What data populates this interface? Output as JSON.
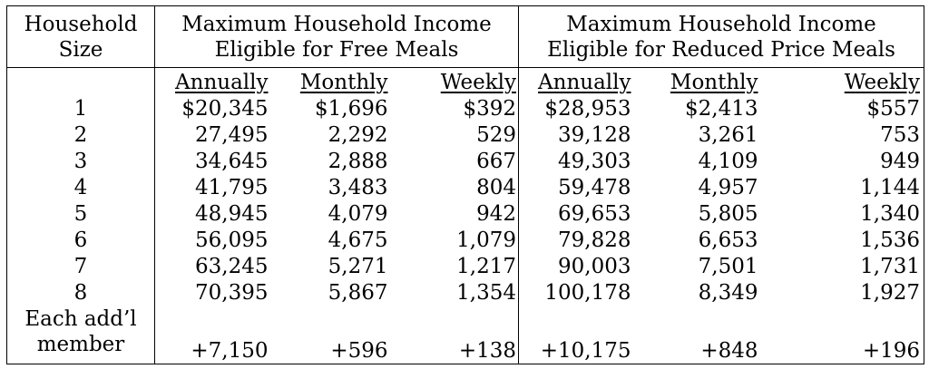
{
  "header": {
    "size_line1": "Household",
    "size_line2": "Size",
    "free_line1": "Maximum Household Income",
    "free_line2": "Eligible for Free Meals",
    "reduced_line1": "Maximum Household Income",
    "reduced_line2": "Eligible for Reduced Price Meals"
  },
  "subheaders": [
    "Annually",
    "Monthly",
    "Weekly",
    "Annually",
    "Monthly",
    "Weekly"
  ],
  "rows": [
    {
      "size": "1",
      "free": [
        "$20,345",
        "$1,696",
        "$392"
      ],
      "reduced": [
        "$28,953",
        "$2,413",
        "$557"
      ]
    },
    {
      "size": "2",
      "free": [
        "27,495",
        "2,292",
        "529"
      ],
      "reduced": [
        "39,128",
        "3,261",
        "753"
      ]
    },
    {
      "size": "3",
      "free": [
        "34,645",
        "2,888",
        "667"
      ],
      "reduced": [
        "49,303",
        "4,109",
        "949"
      ]
    },
    {
      "size": "4",
      "free": [
        "41,795",
        "3,483",
        "804"
      ],
      "reduced": [
        "59,478",
        "4,957",
        "1,144"
      ]
    },
    {
      "size": "5",
      "free": [
        "48,945",
        "4,079",
        "942"
      ],
      "reduced": [
        "69,653",
        "5,805",
        "1,340"
      ]
    },
    {
      "size": "6",
      "free": [
        "56,095",
        "4,675",
        "1,079"
      ],
      "reduced": [
        "79,828",
        "6,653",
        "1,536"
      ]
    },
    {
      "size": "7",
      "free": [
        "63,245",
        "5,271",
        "1,217"
      ],
      "reduced": [
        "90,003",
        "7,501",
        "1,731"
      ]
    },
    {
      "size": "8",
      "free": [
        "70,395",
        "5,867",
        "1,354"
      ],
      "reduced": [
        "100,178",
        "8,349",
        "1,927"
      ]
    }
  ],
  "additional": {
    "label_line1": "Each add’l",
    "label_line2": "member",
    "free": [
      "+7,150",
      "+596",
      "+138"
    ],
    "reduced": [
      "+10,175",
      "+848",
      "+196"
    ]
  }
}
